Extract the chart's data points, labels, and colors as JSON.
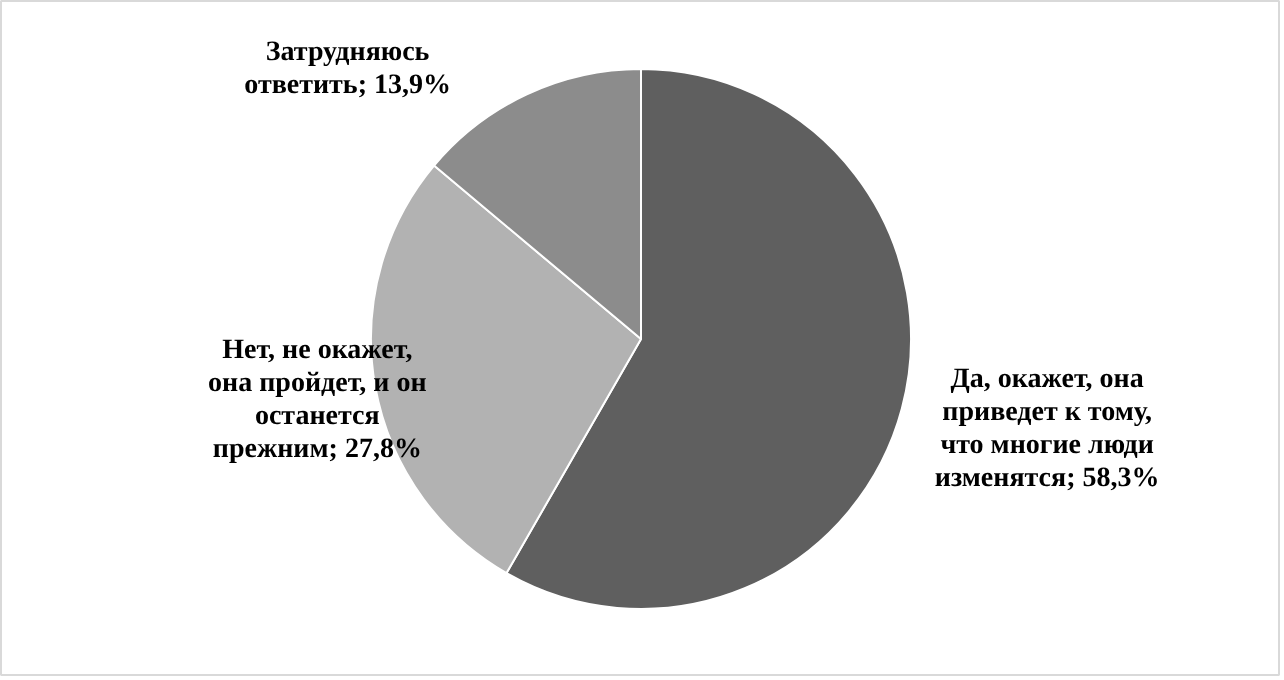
{
  "chart_data": {
    "type": "pie",
    "categories": [
      "Да, окажет, она приведет к тому, что многие люди изменятся",
      "Нет, не окажет, она пройдет, и он останется прежним",
      "Затрудняюсь ответить"
    ],
    "values": [
      58.3,
      27.8,
      13.9
    ],
    "value_labels": [
      "58,3%",
      "27,8%",
      "13,9%"
    ],
    "colors": [
      "#5f5f5f",
      "#b2b2b2",
      "#8c8c8c"
    ]
  }
}
